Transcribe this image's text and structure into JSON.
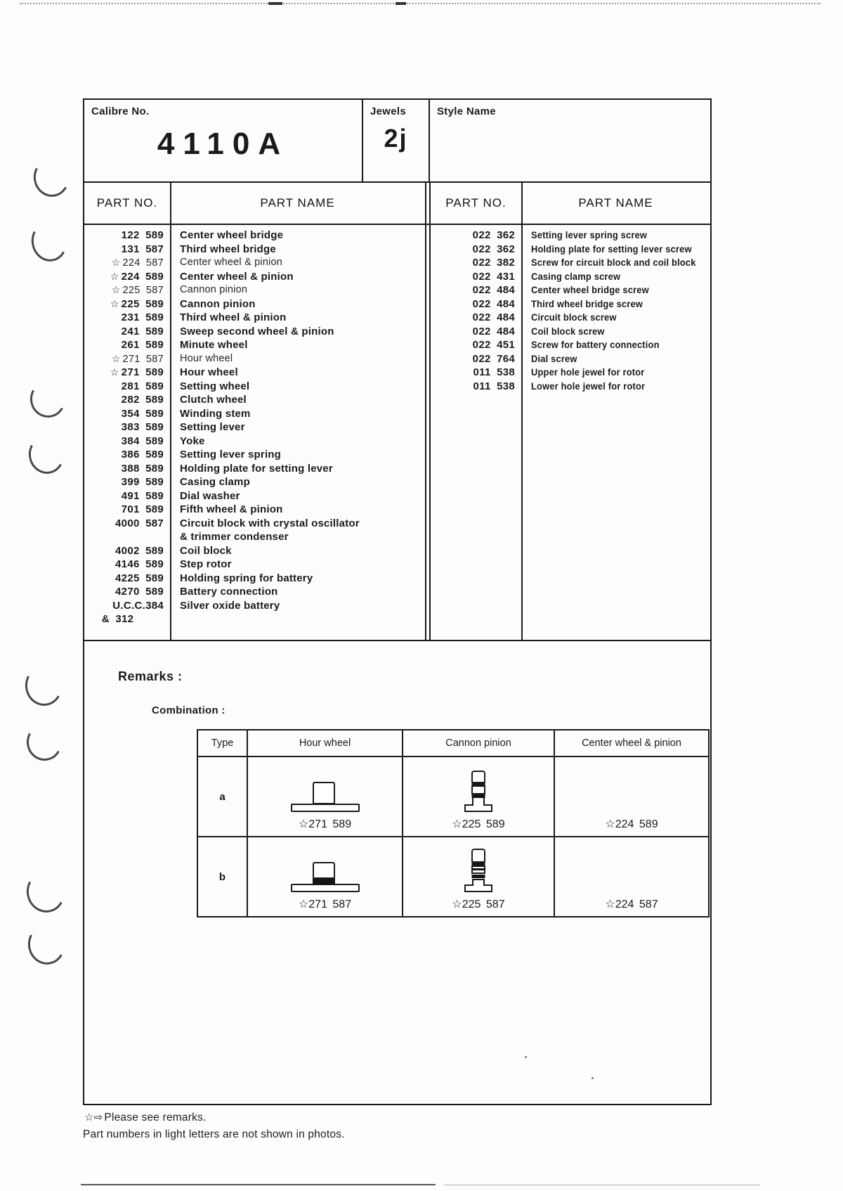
{
  "icons": {
    "star": "☆",
    "arrow": "⇨"
  },
  "header": {
    "calibre_label": "Calibre No.",
    "calibre_value": "4110A",
    "jewels_label": "Jewels",
    "jewels_value": "2j",
    "style_label": "Style Name",
    "style_value": ""
  },
  "columns": {
    "part_no": "PART NO.",
    "part_name": "PART NAME"
  },
  "left_parts": [
    {
      "no": "122 589",
      "name": "Center wheel bridge"
    },
    {
      "no": "131 587",
      "name": "Third wheel bridge"
    },
    {
      "no": "224 587",
      "name": "Center wheel & pinion",
      "star": true,
      "light": true
    },
    {
      "no": "224 589",
      "name": "Center wheel & pinion",
      "star": true
    },
    {
      "no": "225 587",
      "name": "Cannon pinion",
      "star": true,
      "light": true
    },
    {
      "no": "225 589",
      "name": "Cannon pinion",
      "star": true
    },
    {
      "no": "231 589",
      "name": "Third wheel & pinion"
    },
    {
      "no": "241 589",
      "name": "Sweep second wheel & pinion"
    },
    {
      "no": "261 589",
      "name": "Minute wheel"
    },
    {
      "no": "271 587",
      "name": "Hour wheel",
      "star": true,
      "light": true
    },
    {
      "no": "271 589",
      "name": "Hour wheel",
      "star": true
    },
    {
      "no": "281 589",
      "name": "Setting wheel"
    },
    {
      "no": "282 589",
      "name": "Clutch wheel"
    },
    {
      "no": "354 589",
      "name": "Winding stem"
    },
    {
      "no": "383 589",
      "name": "Setting lever"
    },
    {
      "no": "384 589",
      "name": "Yoke"
    },
    {
      "no": "386 589",
      "name": "Setting lever spring"
    },
    {
      "no": "388 589",
      "name": "Holding plate for setting lever"
    },
    {
      "no": "399 589",
      "name": "Casing clamp"
    },
    {
      "no": "491 589",
      "name": "Dial washer"
    },
    {
      "no": "701 589",
      "name": "Fifth wheel & pinion"
    },
    {
      "no": "4000 587",
      "name": "Circuit block with crystal oscillator",
      "name2": "& trimmer condenser"
    },
    {
      "no": "4002 589",
      "name": "Coil block"
    },
    {
      "no": "4146 589",
      "name": "Step rotor"
    },
    {
      "no": "4225 589",
      "name": "Holding spring for battery"
    },
    {
      "no": "4270 589",
      "name": "Battery connection"
    },
    {
      "no": "U.C.C.384",
      "no2": "& 312",
      "name": "Silver oxide battery"
    }
  ],
  "right_parts": [
    {
      "no": "022 362",
      "name": "Setting lever spring screw"
    },
    {
      "no": "022 362",
      "name": "Holding plate for setting lever screw"
    },
    {
      "no": "022 382",
      "name": "Screw for circuit block and coil block"
    },
    {
      "no": "022 431",
      "name": "Casing clamp screw"
    },
    {
      "no": "022 484",
      "name": "Center wheel bridge screw"
    },
    {
      "no": "022 484",
      "name": "Third wheel bridge screw"
    },
    {
      "no": "022 484",
      "name": "Circuit block screw"
    },
    {
      "no": "022 484",
      "name": "Coil block screw"
    },
    {
      "no": "022 451",
      "name": "Screw for battery connection"
    },
    {
      "no": "022 764",
      "name": "Dial screw"
    },
    {
      "no": "011 538",
      "name": "Upper hole jewel for rotor"
    },
    {
      "no": "011 538",
      "name": "Lower hole jewel for rotor"
    }
  ],
  "remarks": {
    "title": "Remarks :",
    "combination_label": "Combination :",
    "table": {
      "headers": [
        "Type",
        "Hour wheel",
        "Cannon pinion",
        "Center wheel & pinion"
      ],
      "rows": [
        {
          "type": "a",
          "hour": "☆271 589",
          "cannon": "☆225 589",
          "center": "☆224 589"
        },
        {
          "type": "b",
          "hour": "☆271 587",
          "cannon": "☆225 587",
          "center": "☆224 587"
        }
      ]
    }
  },
  "footer": {
    "note_prefix": "☆⇨",
    "line1": "Please see remarks.",
    "line2": "Part numbers in light letters are not shown in photos."
  }
}
